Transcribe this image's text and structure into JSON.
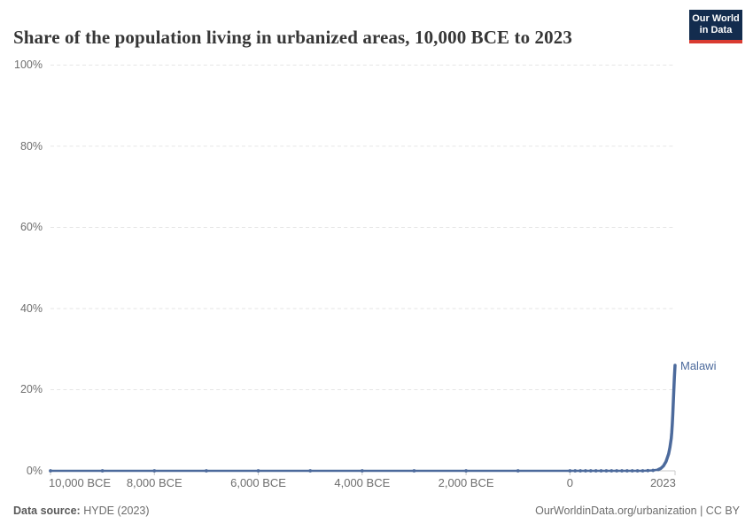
{
  "header": {
    "title": "Share of the population living in urbanized areas, 10,000 BCE to 2023",
    "logo": {
      "line1": "Our World",
      "line2": "in Data"
    }
  },
  "chart_data": {
    "type": "line",
    "title": "Share of the population living in urbanized areas, 10,000 BCE to 2023",
    "xlabel": "",
    "ylabel": "",
    "xlim": [
      -10000,
      2023
    ],
    "ylim": [
      0,
      100
    ],
    "grid": "horizontal dashed",
    "legend_position": "end-of-line label",
    "y_ticks": [
      {
        "value": 0,
        "label": "0%"
      },
      {
        "value": 20,
        "label": "20%"
      },
      {
        "value": 40,
        "label": "40%"
      },
      {
        "value": 60,
        "label": "60%"
      },
      {
        "value": 80,
        "label": "80%"
      },
      {
        "value": 100,
        "label": "100%"
      }
    ],
    "x_ticks": [
      {
        "year": -10000,
        "label": "10,000 BCE",
        "align": "start"
      },
      {
        "year": -8000,
        "label": "8,000 BCE",
        "align": "middle"
      },
      {
        "year": -6000,
        "label": "6,000 BCE",
        "align": "middle"
      },
      {
        "year": -4000,
        "label": "4,000 BCE",
        "align": "middle"
      },
      {
        "year": -2000,
        "label": "2,000 BCE",
        "align": "middle"
      },
      {
        "year": 0,
        "label": "0",
        "align": "middle"
      },
      {
        "year": 2023,
        "label": "2023",
        "align": "end"
      }
    ],
    "series": [
      {
        "name": "Malawi",
        "points": [
          [
            -10000,
            0
          ],
          [
            -9000,
            0
          ],
          [
            -8000,
            0
          ],
          [
            -7000,
            0
          ],
          [
            -6000,
            0
          ],
          [
            -5000,
            0
          ],
          [
            -4000,
            0
          ],
          [
            -3000,
            0
          ],
          [
            -2000,
            0
          ],
          [
            -1000,
            0
          ],
          [
            0,
            0
          ],
          [
            100,
            0
          ],
          [
            200,
            0
          ],
          [
            300,
            0
          ],
          [
            400,
            0
          ],
          [
            500,
            0
          ],
          [
            600,
            0
          ],
          [
            700,
            0
          ],
          [
            800,
            0
          ],
          [
            900,
            0
          ],
          [
            1000,
            0
          ],
          [
            1100,
            0
          ],
          [
            1200,
            0
          ],
          [
            1300,
            0
          ],
          [
            1400,
            0
          ],
          [
            1500,
            0.05
          ],
          [
            1600,
            0.1
          ],
          [
            1700,
            0.3
          ],
          [
            1750,
            0.6
          ],
          [
            1800,
            1.2
          ],
          [
            1850,
            2.3
          ],
          [
            1900,
            4.2
          ],
          [
            1925,
            5.8
          ],
          [
            1950,
            8
          ],
          [
            1960,
            9.5
          ],
          [
            1970,
            11.5
          ],
          [
            1980,
            14
          ],
          [
            1990,
            17
          ],
          [
            2000,
            20
          ],
          [
            2010,
            23
          ],
          [
            2023,
            26
          ]
        ],
        "end_value_pct": 26
      }
    ]
  },
  "footer": {
    "source_label": "Data source:",
    "source_value": " HYDE (2023)",
    "right": "OurWorldinData.org/urbanization | CC BY"
  },
  "colors": {
    "line": "#4c6a9c",
    "entity_label": "#4c6a9c",
    "title": "#373737",
    "tick_text": "#6e6e6e",
    "gridline": "#e6e6e6",
    "axis": "#c8c8c8",
    "footer_text": "#6d6d6d",
    "footer_label": "#5a5a5a",
    "logo_bg": "#132c4e",
    "logo_red": "#d93b31"
  }
}
